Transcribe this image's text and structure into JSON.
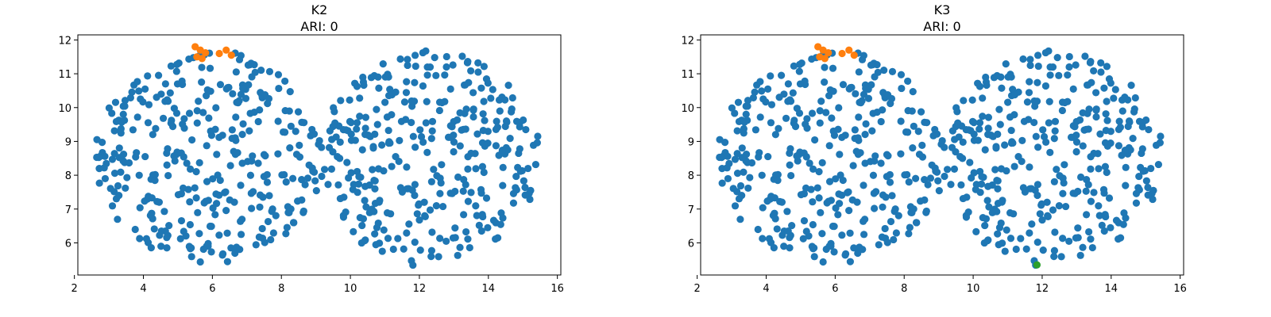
{
  "chart_data": [
    {
      "type": "scatter",
      "title": "K2",
      "subtitle": "ARI: 0",
      "xlabel": "",
      "ylabel": "",
      "xlim": [
        2.1,
        16.1
      ],
      "ylim": [
        5.05,
        12.15
      ],
      "xticks": [
        2,
        4,
        6,
        8,
        10,
        12,
        14,
        16
      ],
      "yticks": [
        6,
        7,
        8,
        9,
        10,
        11,
        12
      ],
      "grid": false,
      "series": [
        {
          "color": "#1f77b4",
          "point_count": 680,
          "regions": [
            {
              "shape": "disk",
              "cx": 5.9,
              "cy": 8.55,
              "rx": 3.3,
              "ry": 3.15
            },
            {
              "shape": "disk",
              "cx": 12.3,
              "cy": 8.5,
              "rx": 3.2,
              "ry": 3.2
            }
          ]
        },
        {
          "color": "#ff7f0e",
          "points": [
            [
              5.5,
              11.8
            ],
            [
              5.65,
              11.7
            ],
            [
              5.8,
              11.62
            ],
            [
              5.55,
              11.5
            ],
            [
              5.7,
              11.45
            ],
            [
              6.2,
              11.6
            ],
            [
              6.4,
              11.7
            ],
            [
              6.55,
              11.55
            ]
          ]
        }
      ]
    },
    {
      "type": "scatter",
      "title": "K3",
      "subtitle": "ARI: 0",
      "xlabel": "",
      "ylabel": "",
      "xlim": [
        2.1,
        16.1
      ],
      "ylim": [
        5.05,
        12.15
      ],
      "xticks": [
        2,
        4,
        6,
        8,
        10,
        12,
        14,
        16
      ],
      "yticks": [
        6,
        7,
        8,
        9,
        10,
        11,
        12
      ],
      "grid": false,
      "series": [
        {
          "color": "#1f77b4",
          "point_count": 680,
          "regions": [
            {
              "shape": "disk",
              "cx": 5.9,
              "cy": 8.55,
              "rx": 3.3,
              "ry": 3.15
            },
            {
              "shape": "disk",
              "cx": 12.3,
              "cy": 8.5,
              "rx": 3.2,
              "ry": 3.2
            }
          ]
        },
        {
          "color": "#ff7f0e",
          "points": [
            [
              5.5,
              11.8
            ],
            [
              5.65,
              11.7
            ],
            [
              5.8,
              11.62
            ],
            [
              5.55,
              11.5
            ],
            [
              5.7,
              11.45
            ],
            [
              6.2,
              11.6
            ],
            [
              6.4,
              11.7
            ],
            [
              6.55,
              11.55
            ]
          ]
        },
        {
          "color": "#2ca02c",
          "points": [
            [
              11.85,
              5.35
            ]
          ]
        }
      ]
    }
  ]
}
